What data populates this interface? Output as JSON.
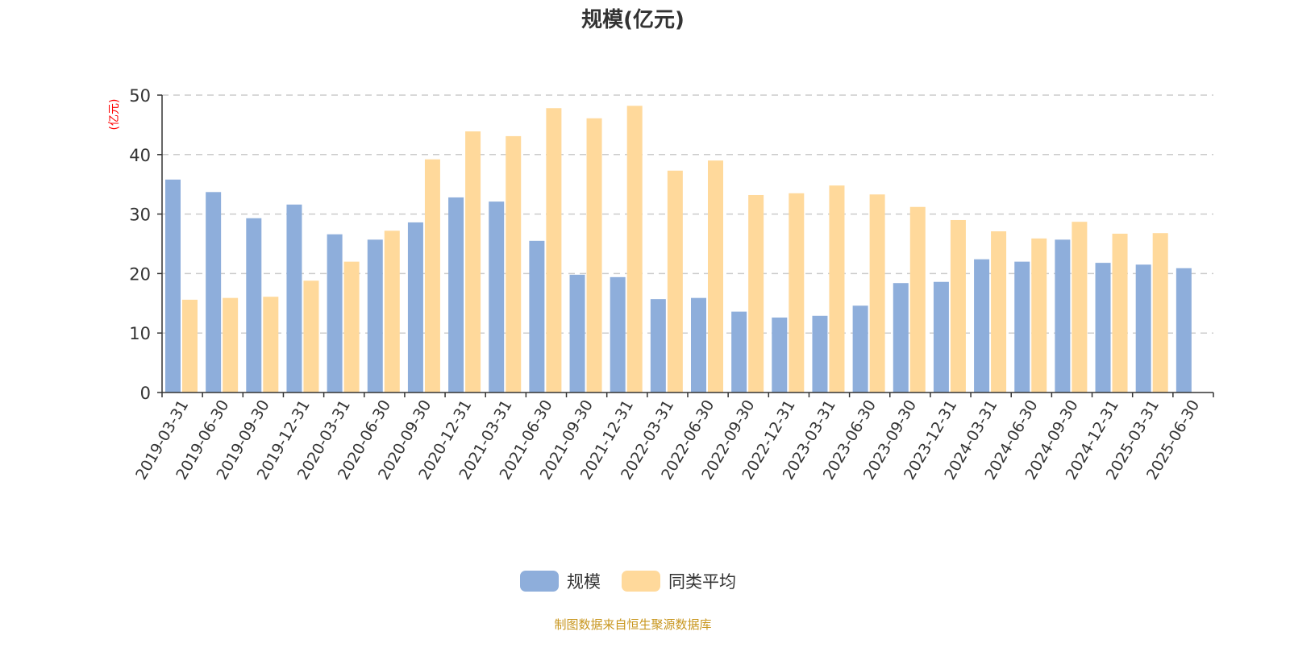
{
  "chart_data": {
    "type": "bar",
    "title": "规模(亿元)",
    "ylabel": "(亿元)",
    "xlabel": "",
    "ylim": [
      0,
      50
    ],
    "yticks": [
      0,
      10,
      20,
      30,
      40,
      50
    ],
    "grid": "horizontal dashed",
    "legend_placement": "bottom-center",
    "categories": [
      "2019-03-31",
      "2019-06-30",
      "2019-09-30",
      "2019-12-31",
      "2020-03-31",
      "2020-06-30",
      "2020-09-30",
      "2020-12-31",
      "2021-03-31",
      "2021-06-30",
      "2021-09-30",
      "2021-12-31",
      "2022-03-31",
      "2022-06-30",
      "2022-09-30",
      "2022-12-31",
      "2023-03-31",
      "2023-06-30",
      "2023-09-30",
      "2023-12-31",
      "2024-03-31",
      "2024-06-30",
      "2024-09-30",
      "2024-12-31",
      "2025-03-31",
      "2025-06-30"
    ],
    "series": [
      {
        "name": "规模",
        "color": "#8eaedb",
        "values": [
          35.8,
          33.7,
          29.3,
          31.6,
          26.6,
          25.7,
          28.6,
          32.8,
          32.1,
          25.5,
          19.8,
          19.4,
          15.7,
          15.9,
          13.6,
          12.6,
          12.9,
          14.6,
          18.4,
          18.6,
          22.4,
          22.0,
          25.7,
          21.8,
          21.5,
          20.9
        ]
      },
      {
        "name": "同类平均",
        "color": "#ffd99b",
        "values": [
          15.6,
          15.9,
          16.1,
          18.8,
          22.0,
          27.2,
          39.2,
          43.9,
          43.1,
          47.8,
          46.1,
          48.2,
          37.3,
          39.0,
          33.2,
          33.5,
          34.8,
          33.3,
          31.2,
          29.0,
          27.1,
          25.9,
          28.7,
          26.7,
          26.8,
          null
        ]
      }
    ]
  },
  "footer": {
    "source": "制图数据来自恒生聚源数据库",
    "color": "#c8961e"
  },
  "colors": {
    "ylabel": "#ff0000",
    "axis": "#333333",
    "grid": "#cccccc"
  }
}
